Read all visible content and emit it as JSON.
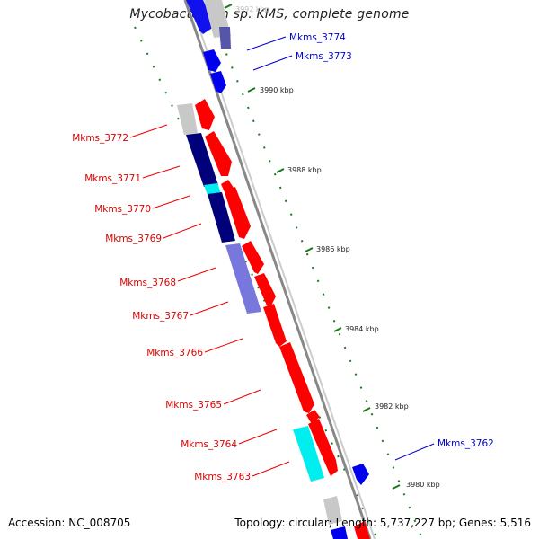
{
  "title": "Mycobacterium sp. KMS, complete genome",
  "footer": {
    "accession": "Accession: NC_008705",
    "summary": "Topology: circular; Length: 5,737,227 bp; Genes: 5,516"
  },
  "colors": {
    "forward": "#ff0000",
    "reverse": "#0000ee",
    "reverse_dark": "#00007a",
    "reverse_light": "#7777dd",
    "cyan": "#00eeee",
    "gray": "#c8c8c8",
    "backbone": "#888888",
    "tick": "#1a7a1a",
    "label_red": "#dd0000",
    "label_blue": "#0000cc"
  },
  "ticks": [
    "3992 kbp",
    "3990 kbp",
    "3988 kbp",
    "3986 kbp",
    "3984 kbp",
    "3982 kbp",
    "3980 kbp"
  ],
  "labels_left": [
    "Mkms_3772",
    "Mkms_3771",
    "Mkms_3770",
    "Mkms_3769",
    "Mkms_3768",
    "Mkms_3767",
    "Mkms_3766",
    "Mkms_3765",
    "Mkms_3764",
    "Mkms_3763"
  ],
  "labels_right": [
    "Mkms_3774",
    "Mkms_3773",
    "Mkms_3762"
  ]
}
